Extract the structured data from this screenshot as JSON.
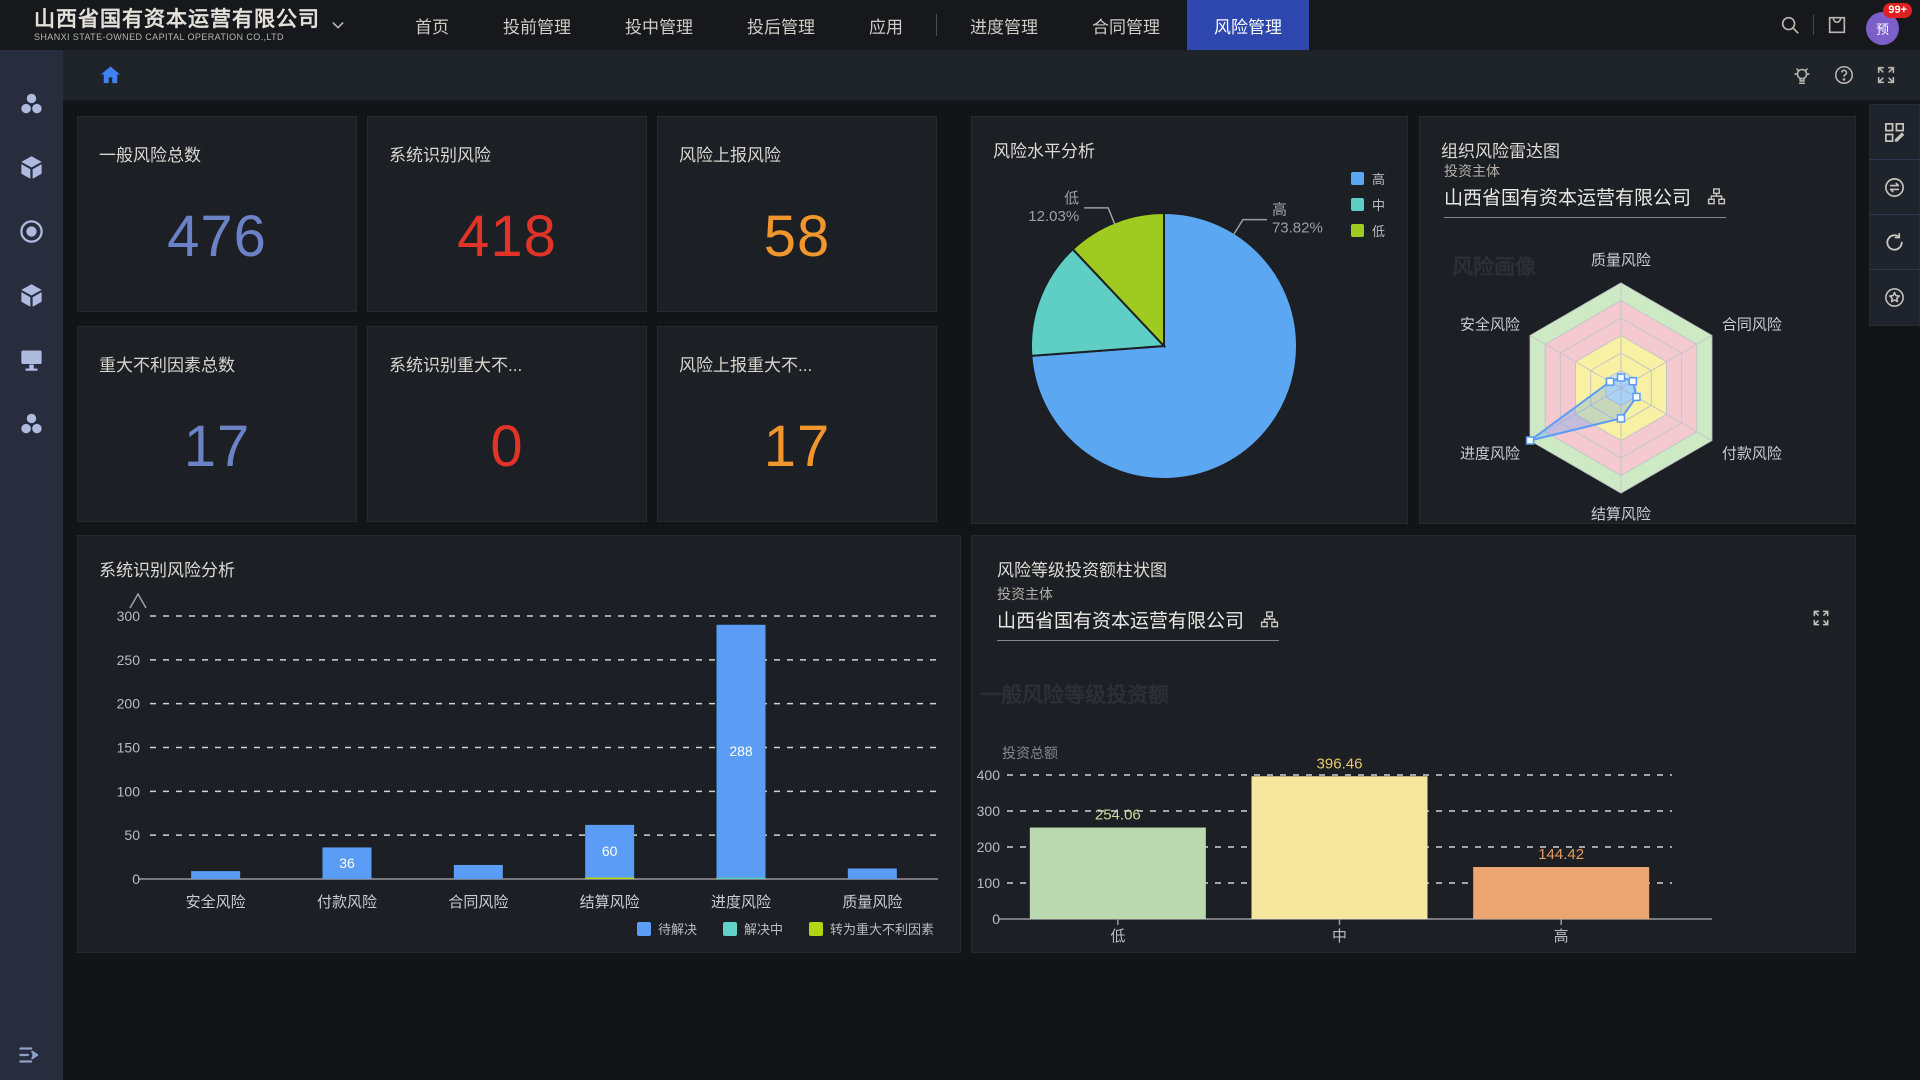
{
  "brand": {
    "name": "山西省国有资本运营有限公司",
    "subtitle": "SHANXI STATE-OWNED CAPITAL OPERATION CO.,LTD"
  },
  "nav": {
    "items": [
      {
        "label": "首页",
        "active": false
      },
      {
        "label": "投前管理",
        "active": false
      },
      {
        "label": "投中管理",
        "active": false
      },
      {
        "label": "投后管理",
        "active": false
      },
      {
        "label": "应用",
        "active": false,
        "divider_after": true
      },
      {
        "label": "进度管理",
        "active": false
      },
      {
        "label": "合同管理",
        "active": false
      },
      {
        "label": "风险管理",
        "active": true
      }
    ]
  },
  "topbar_right": {
    "badge": "99+",
    "avatar_text": "预"
  },
  "sidebar": {
    "icons": [
      "team-icon",
      "cube-icon",
      "record-icon",
      "cube-icon",
      "monitor-icon",
      "team-icon"
    ]
  },
  "right_toolbar": {
    "icons": [
      "grid-edit-icon",
      "transfer-icon",
      "refresh-icon",
      "star-icon"
    ]
  },
  "stat_cards": [
    {
      "title": "一般风险总数",
      "value": "476",
      "color": "#6b82c6"
    },
    {
      "title": "系统识别风险",
      "value": "418",
      "color": "#e23329"
    },
    {
      "title": "风险上报风险",
      "value": "58",
      "color": "#f0962d"
    },
    {
      "title": "重大不利因素总数",
      "value": "17",
      "color": "#6b82c6"
    },
    {
      "title": "系统识别重大不...",
      "value": "0",
      "color": "#e23329"
    },
    {
      "title": "风险上报重大不...",
      "value": "17",
      "color": "#f0962d"
    }
  ],
  "colors": {
    "nav_active": "#2d47ae",
    "avatar_bg": "#7c5fc9",
    "badge_bg": "#e02020",
    "home_icon": "#4080f0"
  },
  "chart_data": [
    {
      "type": "pie",
      "title": "风险水平分析",
      "slices": [
        {
          "label": "高",
          "value": 73.82,
          "color": "#5ca7f2"
        },
        {
          "label": "中",
          "value": 14.15,
          "color": "#5fcec5"
        },
        {
          "label": "低",
          "value": 12.03,
          "color": "#9fcb20"
        }
      ],
      "legend": [
        "高",
        "中",
        "低"
      ],
      "legend_position": "top-right",
      "callouts": [
        {
          "label": "高",
          "text": "73.82%"
        },
        {
          "label": "低",
          "text": "12.03%"
        }
      ]
    },
    {
      "type": "radar",
      "title": "组织风险雷达图",
      "subject_label": "投资主体",
      "subject_value": "山西省国有资本运营有限公司",
      "watermark": "风险画像",
      "axes": [
        "质量风险",
        "合同风险",
        "付款风险",
        "结算风险",
        "进度风险",
        "安全风险"
      ],
      "levels": 6,
      "max": 1,
      "values": [
        0.1,
        0.13,
        0.17,
        0.29,
        1.0,
        0.12
      ],
      "series_color": "#5b9cf6",
      "band_colors_center_out": [
        "#cfe8f4",
        "#f8f0a2",
        "#f8f0a2",
        "#f4c9d0",
        "#f4c9d0",
        "#cdeac4"
      ]
    },
    {
      "type": "bar",
      "title": "系统识别风险分析",
      "categories": [
        "安全风险",
        "付款风险",
        "合同风险",
        "结算风险",
        "进度风险",
        "质量风险"
      ],
      "stacked": true,
      "series": [
        {
          "name": "待解决",
          "color": "#5b9cf6",
          "values": [
            9,
            36,
            16,
            60,
            288,
            12
          ],
          "show_labels": [
            false,
            true,
            false,
            true,
            true,
            false
          ]
        },
        {
          "name": "解决中",
          "color": "#5fd3c9",
          "values": [
            0,
            0,
            0,
            0,
            2,
            0
          ]
        },
        {
          "name": "转为重大不利因素",
          "color": "#b4d514",
          "values": [
            0,
            0,
            0,
            1,
            0,
            0
          ]
        }
      ],
      "ylim": [
        0,
        300
      ],
      "ytick_step": 50,
      "grid": true,
      "legend_position": "bottom-right"
    },
    {
      "type": "bar",
      "title": "风险等级投资额柱状图",
      "subject_label": "投资主体",
      "subject_value": "山西省国有资本运营有限公司",
      "watermark": "一般风险等级投资额",
      "ylabel": "投资总额",
      "categories": [
        "低",
        "中",
        "高"
      ],
      "values": [
        254.06,
        396.46,
        144.42
      ],
      "value_labels": [
        "254.06",
        "396.46",
        "144.42"
      ],
      "bar_colors": [
        "#bbd9ae",
        "#f7e79e",
        "#eca571"
      ],
      "label_colors": [
        "#cdd9a3",
        "#e7ca6e",
        "#e99a5f"
      ],
      "ylim": [
        0,
        400
      ],
      "ytick_step": 100,
      "grid": true
    }
  ]
}
